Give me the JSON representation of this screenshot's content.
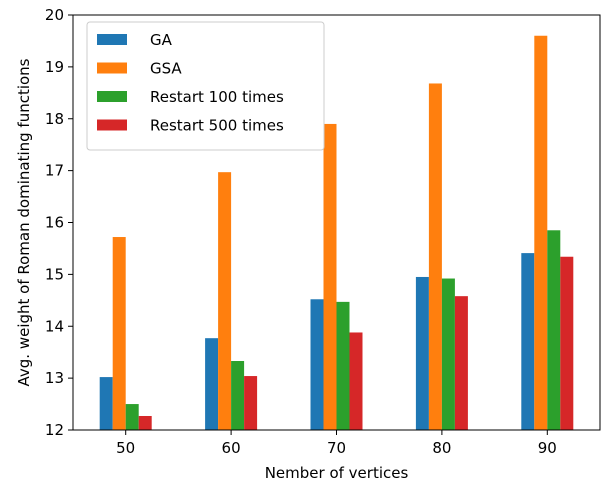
{
  "chart_data": {
    "type": "bar",
    "categories": [
      "50",
      "60",
      "70",
      "80",
      "90"
    ],
    "series": [
      {
        "name": "GA",
        "color": "#1f77b4",
        "values": [
          13.02,
          13.77,
          14.52,
          14.95,
          15.41
        ]
      },
      {
        "name": "GSA",
        "color": "#ff7f0e",
        "values": [
          15.72,
          16.97,
          17.9,
          18.68,
          19.6
        ]
      },
      {
        "name": "Restart 100 times",
        "color": "#2ca02c",
        "values": [
          12.5,
          13.33,
          14.47,
          14.92,
          15.85
        ]
      },
      {
        "name": "Restart 500 times",
        "color": "#d62728",
        "values": [
          12.27,
          13.04,
          13.88,
          14.58,
          15.34
        ]
      }
    ],
    "xlabel": "Nember of vertices",
    "ylabel": "Avg. weight of Roman dominating functions",
    "ylim": [
      12,
      20
    ],
    "yticks": [
      "12",
      "13",
      "14",
      "15",
      "16",
      "17",
      "18",
      "19",
      "20"
    ],
    "grid": false,
    "legend_position": "top-left"
  }
}
